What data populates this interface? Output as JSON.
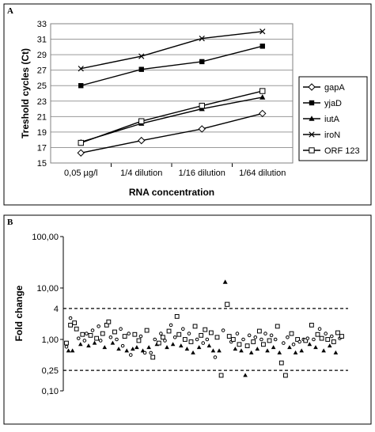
{
  "chart_data": [
    {
      "panel_label": "A",
      "type": "line",
      "categories": [
        "0,05 µg/l",
        "1/4 dilution",
        "1/16 dilution",
        "1/64 dilution"
      ],
      "series": [
        {
          "name": "gapA",
          "marker": "diamond-open",
          "values": [
            16.3,
            17.9,
            19.4,
            21.4
          ]
        },
        {
          "name": "yjaD",
          "marker": "square-filled",
          "values": [
            25.0,
            27.1,
            28.1,
            30.1
          ]
        },
        {
          "name": "iutA",
          "marker": "triangle-filled",
          "values": [
            17.7,
            20.1,
            22.0,
            23.5
          ]
        },
        {
          "name": "iroN",
          "marker": "x",
          "values": [
            27.2,
            28.8,
            31.1,
            32.0
          ]
        },
        {
          "name": "ORF 123",
          "marker": "square-open",
          "values": [
            17.6,
            20.4,
            22.4,
            24.3
          ]
        }
      ],
      "ylabel": "Treshold cycles (Ct)",
      "xlabel": "RNA concentration",
      "ylim": [
        15,
        33
      ],
      "yticks": [
        15,
        17,
        19,
        21,
        23,
        25,
        27,
        29,
        31,
        33
      ],
      "grid": true,
      "legend_position": "right"
    },
    {
      "panel_label": "B",
      "type": "scatter",
      "ylabel": "Fold change",
      "yscale": "log",
      "ylim": [
        0.1,
        100
      ],
      "ytick_labels": [
        "0,10",
        "1,00",
        "10,00",
        "100,00"
      ],
      "reference_lines": [
        {
          "label": "4",
          "value": 4
        },
        {
          "label": "0,25",
          "value": 0.25
        }
      ],
      "legend": false,
      "outliers": [
        {
          "x": 80,
          "value": 13,
          "marker": "triangle-filled"
        },
        {
          "x": 81,
          "value": 4.8,
          "marker": "square-open"
        }
      ],
      "points": [
        {
          "x": 1,
          "value": 0.72,
          "marker": "circle-open"
        },
        {
          "x": 1,
          "value": 0.85,
          "marker": "square-open"
        },
        {
          "x": 2,
          "value": 0.6,
          "marker": "triangle-filled"
        },
        {
          "x": 3,
          "value": 2.6,
          "marker": "circle-open"
        },
        {
          "x": 3,
          "value": 1.9,
          "marker": "square-open"
        },
        {
          "x": 4,
          "value": 0.6,
          "marker": "triangle-filled"
        },
        {
          "x": 5,
          "value": 2.1,
          "marker": "square-open"
        },
        {
          "x": 6,
          "value": 1.6,
          "marker": "square-open"
        },
        {
          "x": 7,
          "value": 1.05,
          "marker": "circle-open"
        },
        {
          "x": 8,
          "value": 0.8,
          "marker": "triangle-filled"
        },
        {
          "x": 9,
          "value": 1.25,
          "marker": "square-open"
        },
        {
          "x": 10,
          "value": 0.95,
          "marker": "circle-open"
        },
        {
          "x": 11,
          "value": 1.3,
          "marker": "circle-open"
        },
        {
          "x": 12,
          "value": 0.75,
          "marker": "triangle-filled"
        },
        {
          "x": 13,
          "value": 1.2,
          "marker": "square-open"
        },
        {
          "x": 14,
          "value": 1.5,
          "marker": "circle-open"
        },
        {
          "x": 15,
          "value": 0.85,
          "marker": "triangle-filled"
        },
        {
          "x": 16,
          "value": 1.05,
          "marker": "square-open"
        },
        {
          "x": 17,
          "value": 1.8,
          "marker": "circle-open"
        },
        {
          "x": 18,
          "value": 0.95,
          "marker": "circle-open"
        },
        {
          "x": 19,
          "value": 1.3,
          "marker": "square-open"
        },
        {
          "x": 20,
          "value": 0.7,
          "marker": "triangle-filled"
        },
        {
          "x": 21,
          "value": 1.9,
          "marker": "square-open"
        },
        {
          "x": 22,
          "value": 2.2,
          "marker": "square-open"
        },
        {
          "x": 23,
          "value": 1.1,
          "marker": "circle-open"
        },
        {
          "x": 24,
          "value": 0.85,
          "marker": "triangle-filled"
        },
        {
          "x": 25,
          "value": 1.4,
          "marker": "square-open"
        },
        {
          "x": 26,
          "value": 1.0,
          "marker": "circle-open"
        },
        {
          "x": 27,
          "value": 0.65,
          "marker": "triangle-filled"
        },
        {
          "x": 28,
          "value": 1.6,
          "marker": "circle-open"
        },
        {
          "x": 29,
          "value": 0.75,
          "marker": "circle-open"
        },
        {
          "x": 30,
          "value": 1.15,
          "marker": "square-open"
        },
        {
          "x": 31,
          "value": 0.6,
          "marker": "triangle-filled"
        },
        {
          "x": 32,
          "value": 1.3,
          "marker": "circle-open"
        },
        {
          "x": 33,
          "value": 0.5,
          "marker": "circle-open"
        },
        {
          "x": 34,
          "value": 0.65,
          "marker": "triangle-filled"
        },
        {
          "x": 35,
          "value": 1.25,
          "marker": "square-open"
        },
        {
          "x": 36,
          "value": 0.7,
          "marker": "triangle-filled"
        },
        {
          "x": 37,
          "value": 0.95,
          "marker": "square-open"
        },
        {
          "x": 38,
          "value": 1.15,
          "marker": "circle-open"
        },
        {
          "x": 39,
          "value": 0.6,
          "marker": "triangle-filled"
        },
        {
          "x": 40,
          "value": 0.55,
          "marker": "circle-open"
        },
        {
          "x": 41,
          "value": 1.5,
          "marker": "square-open"
        },
        {
          "x": 42,
          "value": 0.7,
          "marker": "triangle-filled"
        },
        {
          "x": 43,
          "value": 0.55,
          "marker": "circle-open"
        },
        {
          "x": 44,
          "value": 0.45,
          "marker": "square-open"
        },
        {
          "x": 45,
          "value": 1.0,
          "marker": "circle-open"
        },
        {
          "x": 46,
          "value": 0.8,
          "marker": "triangle-filled"
        },
        {
          "x": 47,
          "value": 0.85,
          "marker": "square-open"
        },
        {
          "x": 48,
          "value": 1.3,
          "marker": "circle-open"
        },
        {
          "x": 49,
          "value": 1.1,
          "marker": "square-open"
        },
        {
          "x": 50,
          "value": 0.95,
          "marker": "circle-open"
        },
        {
          "x": 51,
          "value": 0.7,
          "marker": "triangle-filled"
        },
        {
          "x": 52,
          "value": 1.45,
          "marker": "square-open"
        },
        {
          "x": 53,
          "value": 1.9,
          "marker": "circle-open"
        },
        {
          "x": 54,
          "value": 0.8,
          "marker": "triangle-filled"
        },
        {
          "x": 55,
          "value": 1.1,
          "marker": "circle-open"
        },
        {
          "x": 56,
          "value": 2.8,
          "marker": "square-open"
        },
        {
          "x": 57,
          "value": 1.25,
          "marker": "square-open"
        },
        {
          "x": 58,
          "value": 0.75,
          "marker": "triangle-filled"
        },
        {
          "x": 59,
          "value": 1.6,
          "marker": "circle-open"
        },
        {
          "x": 60,
          "value": 1.0,
          "marker": "square-open"
        },
        {
          "x": 61,
          "value": 0.65,
          "marker": "triangle-filled"
        },
        {
          "x": 62,
          "value": 1.3,
          "marker": "circle-open"
        },
        {
          "x": 63,
          "value": 0.9,
          "marker": "square-open"
        },
        {
          "x": 64,
          "value": 0.55,
          "marker": "triangle-filled"
        },
        {
          "x": 65,
          "value": 1.8,
          "marker": "square-open"
        },
        {
          "x": 66,
          "value": 1.0,
          "marker": "circle-open"
        },
        {
          "x": 67,
          "value": 0.7,
          "marker": "triangle-filled"
        },
        {
          "x": 68,
          "value": 1.2,
          "marker": "square-open"
        },
        {
          "x": 69,
          "value": 0.85,
          "marker": "circle-open"
        },
        {
          "x": 70,
          "value": 1.55,
          "marker": "square-open"
        },
        {
          "x": 71,
          "value": 1.0,
          "marker": "circle-open"
        },
        {
          "x": 72,
          "value": 0.75,
          "marker": "triangle-filled"
        },
        {
          "x": 73,
          "value": 1.35,
          "marker": "square-open"
        },
        {
          "x": 74,
          "value": 0.6,
          "marker": "triangle-filled"
        },
        {
          "x": 75,
          "value": 0.45,
          "marker": "circle-open"
        },
        {
          "x": 76,
          "value": 1.1,
          "marker": "square-open"
        },
        {
          "x": 77,
          "value": 0.6,
          "marker": "triangle-filled"
        },
        {
          "x": 78,
          "value": 0.2,
          "marker": "square-open"
        },
        {
          "x": 79,
          "value": 1.5,
          "marker": "circle-open"
        },
        {
          "x": 82,
          "value": 1.15,
          "marker": "square-open"
        },
        {
          "x": 83,
          "value": 0.9,
          "marker": "circle-open"
        },
        {
          "x": 84,
          "value": 1.0,
          "marker": "square-open"
        },
        {
          "x": 85,
          "value": 0.65,
          "marker": "triangle-filled"
        },
        {
          "x": 86,
          "value": 1.3,
          "marker": "circle-open"
        },
        {
          "x": 87,
          "value": 0.8,
          "marker": "square-open"
        },
        {
          "x": 88,
          "value": 0.6,
          "marker": "triangle-filled"
        },
        {
          "x": 89,
          "value": 1.0,
          "marker": "circle-open"
        },
        {
          "x": 90,
          "value": 0.2,
          "marker": "triangle-filled"
        },
        {
          "x": 91,
          "value": 0.75,
          "marker": "square-open"
        },
        {
          "x": 92,
          "value": 1.2,
          "marker": "circle-open"
        },
        {
          "x": 93,
          "value": 0.55,
          "marker": "triangle-filled"
        },
        {
          "x": 94,
          "value": 0.9,
          "marker": "square-open"
        },
        {
          "x": 95,
          "value": 1.1,
          "marker": "circle-open"
        },
        {
          "x": 96,
          "value": 0.65,
          "marker": "triangle-filled"
        },
        {
          "x": 97,
          "value": 1.45,
          "marker": "square-open"
        },
        {
          "x": 98,
          "value": 1.0,
          "marker": "circle-open"
        },
        {
          "x": 99,
          "value": 0.8,
          "marker": "square-open"
        },
        {
          "x": 100,
          "value": 1.3,
          "marker": "circle-open"
        },
        {
          "x": 101,
          "value": 0.6,
          "marker": "triangle-filled"
        },
        {
          "x": 102,
          "value": 0.95,
          "marker": "square-open"
        },
        {
          "x": 103,
          "value": 1.2,
          "marker": "circle-open"
        },
        {
          "x": 104,
          "value": 0.7,
          "marker": "triangle-filled"
        },
        {
          "x": 105,
          "value": 1.0,
          "marker": "circle-open"
        },
        {
          "x": 106,
          "value": 1.8,
          "marker": "square-open"
        },
        {
          "x": 107,
          "value": 0.55,
          "marker": "triangle-filled"
        },
        {
          "x": 108,
          "value": 0.35,
          "marker": "square-open"
        },
        {
          "x": 109,
          "value": 0.85,
          "marker": "circle-open"
        },
        {
          "x": 110,
          "value": 0.2,
          "marker": "square-open"
        },
        {
          "x": 111,
          "value": 1.1,
          "marker": "circle-open"
        },
        {
          "x": 112,
          "value": 0.7,
          "marker": "triangle-filled"
        },
        {
          "x": 113,
          "value": 1.3,
          "marker": "square-open"
        },
        {
          "x": 114,
          "value": 0.8,
          "marker": "circle-open"
        },
        {
          "x": 115,
          "value": 0.55,
          "marker": "triangle-filled"
        },
        {
          "x": 116,
          "value": 1.0,
          "marker": "square-open"
        },
        {
          "x": 117,
          "value": 0.9,
          "marker": "circle-open"
        },
        {
          "x": 118,
          "value": 0.6,
          "marker": "triangle-filled"
        },
        {
          "x": 119,
          "value": 1.0,
          "marker": "circle-open"
        },
        {
          "x": 120,
          "value": 0.95,
          "marker": "square-open"
        },
        {
          "x": 121,
          "value": 1.05,
          "marker": "circle-open"
        },
        {
          "x": 122,
          "value": 0.8,
          "marker": "triangle-filled"
        },
        {
          "x": 123,
          "value": 1.9,
          "marker": "square-open"
        },
        {
          "x": 124,
          "value": 1.0,
          "marker": "circle-open"
        },
        {
          "x": 125,
          "value": 0.7,
          "marker": "triangle-filled"
        },
        {
          "x": 126,
          "value": 1.25,
          "marker": "square-open"
        },
        {
          "x": 127,
          "value": 1.6,
          "marker": "circle-open"
        },
        {
          "x": 128,
          "value": 1.05,
          "marker": "square-open"
        },
        {
          "x": 129,
          "value": 0.6,
          "marker": "triangle-filled"
        },
        {
          "x": 130,
          "value": 1.3,
          "marker": "circle-open"
        },
        {
          "x": 131,
          "value": 1.0,
          "marker": "square-open"
        },
        {
          "x": 132,
          "value": 0.75,
          "marker": "triangle-filled"
        },
        {
          "x": 133,
          "value": 1.15,
          "marker": "circle-open"
        },
        {
          "x": 134,
          "value": 0.9,
          "marker": "square-open"
        },
        {
          "x": 135,
          "value": 0.55,
          "marker": "triangle-filled"
        },
        {
          "x": 136,
          "value": 1.35,
          "marker": "square-open"
        },
        {
          "x": 137,
          "value": 1.05,
          "marker": "circle-open"
        },
        {
          "x": 138,
          "value": 1.15,
          "marker": "square-open"
        }
      ]
    }
  ]
}
